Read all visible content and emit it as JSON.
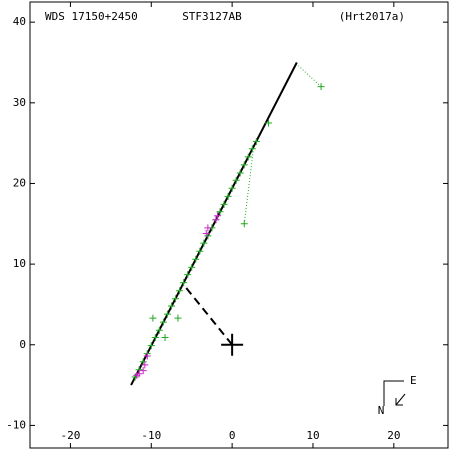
{
  "chart_data": {
    "type": "scatter",
    "header_left": "WDS 17150+2450",
    "header_center": "STF3127AB",
    "header_right": "(Hrt2017a)",
    "compass_east": "E",
    "compass_north": "N",
    "xlim": [
      -25,
      26.7
    ],
    "ylim": [
      -12.8,
      42.5
    ],
    "xticks": [
      -20,
      -10,
      0,
      10,
      20
    ],
    "yticks": [
      -10,
      0,
      10,
      20,
      30,
      40
    ],
    "series": [
      {
        "color": "#000000",
        "style": "line",
        "x": [
          -12.5,
          8
        ],
        "values": [
          -5,
          35
        ]
      },
      {
        "color": "#000000",
        "style": "dashed",
        "x": [
          0,
          -5.8
        ],
        "values": [
          0,
          7.2
        ]
      },
      {
        "color": "#22aa22",
        "style": "dotted",
        "x": [
          11,
          8.2
        ],
        "values": [
          32,
          34.6
        ]
      },
      {
        "color": "#22aa22",
        "style": "dotted",
        "x": [
          1.5,
          2.6
        ],
        "values": [
          15,
          24
        ]
      },
      {
        "color": "#22aa22",
        "style": "marker",
        "size": 7,
        "x": [
          -12,
          -11.5,
          -11,
          -10.5,
          -10,
          -9.5,
          -9,
          -8.5,
          -8,
          -7.5,
          -7,
          -6.5,
          -6,
          -5.5,
          -5,
          -4.5,
          -4,
          -3.5,
          -3,
          -2.5,
          -2,
          -1.5,
          -1,
          -0.5,
          0,
          0.5,
          1,
          1.5,
          2,
          2.5,
          3,
          4.5,
          11,
          1.5,
          -6.7,
          -8.3,
          -9.8
        ],
        "values": [
          -4.0,
          -3.1,
          -2.1,
          -1.1,
          -0.1,
          0.9,
          1.8,
          2.8,
          3.8,
          4.8,
          5.7,
          6.7,
          7.7,
          8.7,
          9.6,
          10.6,
          11.6,
          12.6,
          13.5,
          14.5,
          15.5,
          16.5,
          17.4,
          18.4,
          19.4,
          20.4,
          21.3,
          22.3,
          23.3,
          24.3,
          25.2,
          27.5,
          32,
          15,
          3.3,
          0.9,
          3.3
        ]
      },
      {
        "color": "#cc22cc",
        "style": "marker",
        "size": 7,
        "x": [
          -11.5,
          -11,
          -11.8,
          -10.8,
          -10.5,
          -3,
          -3.2,
          -1.8,
          -2
        ],
        "values": [
          -3.6,
          -3.2,
          -3.8,
          -2.5,
          -1.4,
          14.5,
          13.8,
          16,
          15.5
        ]
      },
      {
        "color": "#000000",
        "style": "marker",
        "size": 22,
        "x": [
          0
        ],
        "values": [
          0
        ]
      }
    ]
  }
}
